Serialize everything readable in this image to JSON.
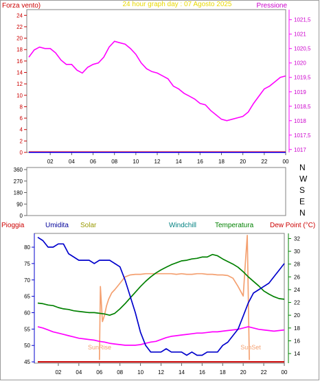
{
  "chart_data": [
    {
      "type": "line",
      "title": "24 hour graph day : 07 Agosto 2025",
      "left_label": "Forza vento)",
      "right_label": "Pressione",
      "x_ticks": [
        "02",
        "04",
        "06",
        "08",
        "10",
        "12",
        "14",
        "16",
        "18",
        "20",
        "22",
        "00"
      ],
      "y_left_ticks": [
        "0",
        "2",
        "4",
        "6",
        "8",
        "10",
        "12",
        "14",
        "16",
        "18",
        "20",
        "22",
        "24"
      ],
      "y_left_range": [
        0,
        25
      ],
      "y_right_ticks": [
        "1017",
        "1017,5",
        "1018",
        "1018,5",
        "1019",
        "1019,5",
        "1020",
        "1020,5",
        "1021",
        "1021,5"
      ],
      "y_right_range": [
        1016.9,
        1021.85
      ],
      "grid": false,
      "series": [
        {
          "color": "#ff00ff",
          "axis": "right",
          "x": [
            0,
            0.5,
            1,
            1.5,
            2,
            2.5,
            3,
            3.5,
            4,
            4.5,
            5,
            5.5,
            6,
            6.5,
            7,
            7.5,
            8,
            8.5,
            9,
            9.5,
            10,
            10.5,
            11,
            11.5,
            12,
            12.5,
            13,
            13.5,
            14,
            14.5,
            15,
            15.5,
            16,
            16.5,
            17,
            17.5,
            18,
            18.5,
            19,
            19.5,
            20,
            20.5,
            21,
            21.5,
            22,
            22.5,
            23,
            23.5,
            24
          ],
          "values": [
            1020.2,
            1020.45,
            1020.55,
            1020.5,
            1020.5,
            1020.35,
            1020.1,
            1019.95,
            1019.95,
            1019.75,
            1019.65,
            1019.85,
            1019.95,
            1020.0,
            1020.2,
            1020.55,
            1020.75,
            1020.7,
            1020.65,
            1020.5,
            1020.3,
            1020.0,
            1019.8,
            1019.7,
            1019.65,
            1019.55,
            1019.45,
            1019.2,
            1019.1,
            1018.95,
            1018.85,
            1018.75,
            1018.6,
            1018.55,
            1018.35,
            1018.2,
            1018.05,
            1018.0,
            1018.05,
            1018.1,
            1018.15,
            1018.3,
            1018.6,
            1018.85,
            1019.1,
            1019.2,
            1019.35,
            1019.5,
            1019.55
          ]
        },
        {
          "color": "#ff0000",
          "axis": "left",
          "x": [
            0,
            24
          ],
          "values": [
            0.1,
            0.1
          ]
        },
        {
          "color": "#0000ff",
          "axis": "left",
          "x": [
            0,
            24
          ],
          "values": [
            0,
            0
          ]
        }
      ]
    },
    {
      "type": "scatter",
      "y_left_ticks": [
        "360",
        "270",
        "180",
        "90",
        "0"
      ],
      "y_left_range": [
        0,
        360
      ],
      "right_labels": [
        "N",
        "W",
        "S",
        "E",
        "N"
      ],
      "grid": false,
      "series": []
    },
    {
      "type": "line",
      "legend": [
        "Pioggia",
        "Umidita",
        "Solar",
        "Windchill",
        "Temperatura",
        "Dew Point (°C)"
      ],
      "x_ticks": [
        "02",
        "04",
        "06",
        "08",
        "10",
        "12",
        "14",
        "16",
        "18",
        "20",
        "22",
        "00"
      ],
      "y_left_ticks": [
        "45",
        "50",
        "55",
        "60",
        "65",
        "70",
        "75",
        "80"
      ],
      "y_left_range": [
        44.6,
        84.2
      ],
      "y_right_ticks": [
        "14",
        "16",
        "18",
        "20",
        "22",
        "24",
        "26",
        "28",
        "30",
        "32"
      ],
      "y_right_range": [
        12.5,
        32.8
      ],
      "annotations": [
        "SunRise",
        "SunSet"
      ],
      "grid": false,
      "series": [
        {
          "name": "Umidita",
          "color": "#0000cc",
          "axis": "left",
          "x": [
            0,
            0.5,
            1,
            1.5,
            2,
            2.5,
            3,
            3.5,
            4,
            4.5,
            5,
            5.5,
            6,
            6.5,
            7,
            7.5,
            8,
            8.5,
            9,
            9.5,
            10,
            10.5,
            11,
            11.5,
            12,
            12.5,
            13,
            13.5,
            14,
            14.5,
            15,
            15.5,
            16,
            16.5,
            17,
            17.5,
            18,
            18.5,
            19,
            19.5,
            20,
            20.5,
            21,
            21.5,
            22,
            22.5,
            23,
            23.5,
            24
          ],
          "values": [
            83,
            82,
            80,
            80,
            81,
            81,
            78,
            77,
            76,
            76,
            76,
            75,
            76,
            76,
            76,
            75,
            74,
            70,
            65,
            60,
            54,
            50,
            48,
            48,
            48,
            49,
            48,
            48,
            48,
            47,
            48,
            47,
            47,
            48,
            48,
            48,
            50,
            51,
            53,
            55,
            59,
            63,
            66,
            67,
            68,
            69,
            71,
            73,
            75
          ]
        },
        {
          "name": "Temperatura",
          "color": "#008000",
          "axis": "right",
          "x": [
            0,
            0.5,
            1,
            1.5,
            2,
            2.5,
            3,
            3.5,
            4,
            4.5,
            5,
            5.5,
            6,
            6.5,
            7,
            7.5,
            8,
            8.5,
            9,
            9.5,
            10,
            10.5,
            11,
            11.5,
            12,
            12.5,
            13,
            13.5,
            14,
            14.5,
            15,
            15.5,
            16,
            16.5,
            17,
            17.5,
            18,
            18.5,
            19,
            19.5,
            20,
            20.5,
            21,
            21.5,
            22,
            22.5,
            23,
            23.5,
            24
          ],
          "values": [
            21.9,
            21.8,
            21.6,
            21.5,
            21.2,
            21.0,
            20.9,
            20.7,
            20.6,
            20.5,
            20.4,
            20.4,
            20.3,
            20.2,
            20.0,
            20.3,
            21.0,
            21.8,
            22.7,
            23.6,
            24.5,
            25.3,
            26.0,
            26.6,
            27.1,
            27.5,
            27.9,
            28.2,
            28.5,
            28.6,
            28.8,
            28.9,
            29.1,
            29.1,
            29.5,
            29.3,
            28.8,
            28.4,
            28.0,
            27.5,
            26.8,
            26.0,
            25.3,
            24.6,
            23.8,
            23.3,
            22.9,
            22.6,
            22.5
          ]
        },
        {
          "name": "Dew Point (°C)",
          "color": "#ff00ff",
          "axis": "right",
          "x": [
            0,
            0.5,
            1,
            1.5,
            2,
            2.5,
            3,
            3.5,
            4,
            4.5,
            5,
            5.5,
            6,
            6.5,
            7,
            7.5,
            8,
            8.5,
            9,
            9.5,
            10,
            10.5,
            11,
            11.5,
            12,
            12.5,
            13,
            13.5,
            14,
            14.5,
            15,
            15.5,
            16,
            16.5,
            17,
            17.5,
            18,
            18.5,
            19,
            19.5,
            20,
            20.5,
            21,
            21.5,
            22,
            22.5,
            23,
            23.5,
            24
          ],
          "values": [
            18.2,
            18.0,
            17.7,
            17.4,
            17.2,
            17.0,
            16.8,
            16.6,
            16.4,
            16.3,
            16.2,
            16.1,
            15.9,
            15.8,
            15.6,
            15.5,
            15.4,
            15.3,
            15.3,
            15.3,
            15.4,
            15.6,
            15.8,
            15.9,
            16.2,
            16.5,
            16.7,
            16.8,
            16.9,
            17.0,
            17.1,
            17.2,
            17.2,
            17.3,
            17.4,
            17.4,
            17.5,
            17.6,
            17.7,
            17.8,
            18.0,
            18.2,
            18.0,
            17.8,
            17.7,
            17.6,
            17.5,
            17.6,
            17.7
          ]
        },
        {
          "name": "Solar",
          "color": "#f4a070",
          "axis": "right",
          "x": [
            6,
            6.1,
            6.3,
            6.5,
            6.7,
            6.9,
            7.2,
            7.5,
            8,
            8.5,
            9,
            9.5,
            10,
            10.5,
            11,
            11.5,
            12,
            12.5,
            13,
            13.5,
            14,
            14.5,
            15,
            15.5,
            16,
            16.5,
            17,
            17.5,
            18,
            18.5,
            19,
            19.5,
            20,
            20.2,
            20.4,
            20.6
          ],
          "values": [
            13.0,
            24.5,
            19.0,
            20.0,
            21.5,
            22.5,
            23.5,
            24.0,
            25.0,
            26.0,
            26.3,
            26.4,
            26.4,
            26.5,
            26.5,
            26.5,
            26.5,
            26.5,
            26.5,
            26.4,
            26.5,
            26.4,
            26.4,
            26.5,
            26.5,
            26.4,
            26.4,
            26.3,
            26.3,
            26.2,
            25.8,
            24.5,
            23.0,
            28.0,
            32.5,
            13.0
          ]
        },
        {
          "name": "Pioggia",
          "color": "#cc0000",
          "axis": "left",
          "x": [
            0,
            24
          ],
          "values": [
            45,
            45
          ]
        }
      ]
    }
  ]
}
